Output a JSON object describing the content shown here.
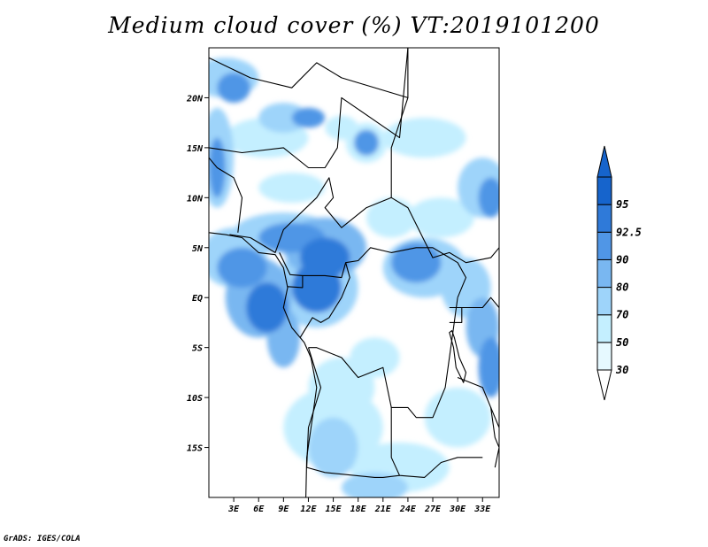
{
  "title": "Medium cloud cover (%) VT:2019101200",
  "credit": "GrADS: IGES/COLA",
  "map": {
    "lon_range": [
      0,
      35
    ],
    "lat_range": [
      -20,
      25
    ],
    "lon_ticks": [
      {
        "value": 3,
        "label": "3E"
      },
      {
        "value": 6,
        "label": "6E"
      },
      {
        "value": 9,
        "label": "9E"
      },
      {
        "value": 12,
        "label": "12E"
      },
      {
        "value": 15,
        "label": "15E"
      },
      {
        "value": 18,
        "label": "18E"
      },
      {
        "value": 21,
        "label": "21E"
      },
      {
        "value": 24,
        "label": "24E"
      },
      {
        "value": 27,
        "label": "27E"
      },
      {
        "value": 30,
        "label": "30E"
      },
      {
        "value": 33,
        "label": "33E"
      }
    ],
    "lat_ticks": [
      {
        "value": 20,
        "label": "20N"
      },
      {
        "value": 15,
        "label": "15N"
      },
      {
        "value": 10,
        "label": "10N"
      },
      {
        "value": 5,
        "label": "5N"
      },
      {
        "value": 0,
        "label": "EQ"
      },
      {
        "value": -5,
        "label": "5S"
      },
      {
        "value": -10,
        "label": "10S"
      },
      {
        "value": -15,
        "label": "15S"
      }
    ]
  },
  "colorbar": {
    "levels": [
      {
        "label": "30",
        "color": "#e6f9ff"
      },
      {
        "label": "50",
        "color": "#c4efff"
      },
      {
        "label": "70",
        "color": "#9ed4fa"
      },
      {
        "label": "80",
        "color": "#79b7f1"
      },
      {
        "label": "90",
        "color": "#5096e6"
      },
      {
        "label": "92.5",
        "color": "#2f7ad9"
      },
      {
        "label": "95",
        "color": "#1664cc"
      }
    ],
    "under_color": "#ffffff",
    "over_color": "#1664cc"
  },
  "cloud_blobs": [
    {
      "lon": 2,
      "lat": 22,
      "rx": 4,
      "ry": 2,
      "level": 2
    },
    {
      "lon": 3,
      "lat": 21,
      "rx": 2,
      "ry": 1.5,
      "level": 4
    },
    {
      "lon": 9,
      "lat": 18,
      "rx": 3,
      "ry": 1.5,
      "level": 2
    },
    {
      "lon": 12,
      "lat": 18,
      "rx": 2,
      "ry": 1,
      "level": 4
    },
    {
      "lon": 16,
      "lat": 17,
      "rx": 2,
      "ry": 1.2,
      "level": 1
    },
    {
      "lon": 1,
      "lat": 14,
      "rx": 2,
      "ry": 5,
      "level": 2
    },
    {
      "lon": 1,
      "lat": 13,
      "rx": 1,
      "ry": 3,
      "level": 4
    },
    {
      "lon": 7,
      "lat": 16,
      "rx": 5,
      "ry": 2,
      "level": 1
    },
    {
      "lon": 19,
      "lat": 15.5,
      "rx": 1.5,
      "ry": 1.3,
      "level": 4
    },
    {
      "lon": 19,
      "lat": 15.5,
      "rx": 2.5,
      "ry": 2,
      "level": 1
    },
    {
      "lon": 26,
      "lat": 16,
      "rx": 5,
      "ry": 2,
      "level": 1
    },
    {
      "lon": 10,
      "lat": 11,
      "rx": 4,
      "ry": 1.5,
      "level": 1
    },
    {
      "lon": 33,
      "lat": 11,
      "rx": 3,
      "ry": 3,
      "level": 2
    },
    {
      "lon": 34,
      "lat": 10,
      "rx": 1.5,
      "ry": 2,
      "level": 4
    },
    {
      "lon": 28,
      "lat": 8,
      "rx": 4,
      "ry": 2,
      "level": 1
    },
    {
      "lon": 22,
      "lat": 8,
      "rx": 3,
      "ry": 2,
      "level": 1
    },
    {
      "lon": 9,
      "lat": 6.5,
      "rx": 6,
      "ry": 2,
      "level": 2
    },
    {
      "lon": 10,
      "lat": 6,
      "rx": 4,
      "ry": 1.5,
      "level": 4
    },
    {
      "lon": 14,
      "lat": 5,
      "rx": 5,
      "ry": 3,
      "level": 3
    },
    {
      "lon": 14,
      "lat": 4,
      "rx": 3,
      "ry": 2,
      "level": 5
    },
    {
      "lon": 3,
      "lat": 4,
      "rx": 4,
      "ry": 3,
      "level": 2
    },
    {
      "lon": 4,
      "lat": 3,
      "rx": 3,
      "ry": 2,
      "level": 4
    },
    {
      "lon": 6,
      "lat": 0,
      "rx": 4,
      "ry": 4,
      "level": 3
    },
    {
      "lon": 7,
      "lat": -1,
      "rx": 2.5,
      "ry": 2.5,
      "level": 5
    },
    {
      "lon": 13,
      "lat": 1,
      "rx": 3,
      "ry": 2.5,
      "level": 5
    },
    {
      "lon": 13,
      "lat": 1,
      "rx": 5,
      "ry": 4,
      "level": 2
    },
    {
      "lon": 9,
      "lat": -4,
      "rx": 2,
      "ry": 3,
      "level": 3
    },
    {
      "lon": 26,
      "lat": 3,
      "rx": 5,
      "ry": 3,
      "level": 2
    },
    {
      "lon": 25,
      "lat": 3.5,
      "rx": 3,
      "ry": 2,
      "level": 4
    },
    {
      "lon": 31,
      "lat": 1,
      "rx": 3,
      "ry": 3,
      "level": 2
    },
    {
      "lon": 33,
      "lat": -3,
      "rx": 2,
      "ry": 3,
      "level": 3
    },
    {
      "lon": 34,
      "lat": -7,
      "rx": 1.5,
      "ry": 3,
      "level": 4
    },
    {
      "lon": 20,
      "lat": -6,
      "rx": 3,
      "ry": 2,
      "level": 1
    },
    {
      "lon": 16,
      "lat": -9,
      "rx": 4,
      "ry": 3,
      "level": 1
    },
    {
      "lon": 15,
      "lat": -13,
      "rx": 6,
      "ry": 4,
      "level": 1
    },
    {
      "lon": 15,
      "lat": -15,
      "rx": 3,
      "ry": 3,
      "level": 2
    },
    {
      "lon": 23,
      "lat": -17,
      "rx": 6,
      "ry": 2.5,
      "level": 1
    },
    {
      "lon": 30,
      "lat": -12,
      "rx": 4,
      "ry": 3,
      "level": 1
    },
    {
      "lon": 20,
      "lat": -19,
      "rx": 4,
      "ry": 1.5,
      "level": 2
    }
  ]
}
